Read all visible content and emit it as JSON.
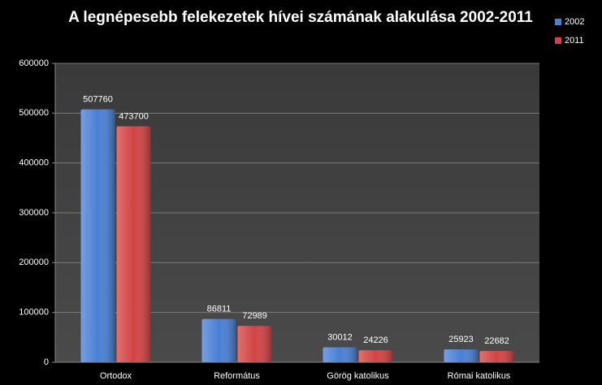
{
  "chart_data": {
    "type": "bar",
    "title": "A legnépesebb felekezetek hívei számának alakulása 2002-2011",
    "categories": [
      "Ortodox",
      "Református",
      "Görög katolikus",
      "Római katolikus"
    ],
    "series": [
      {
        "name": "2002",
        "color": "#4a7fd4",
        "values": [
          507760,
          86811,
          30012,
          25923
        ]
      },
      {
        "name": "2011",
        "color": "#d24343",
        "values": [
          473700,
          72989,
          24226,
          22682
        ]
      }
    ],
    "ylim": [
      0,
      600000
    ],
    "yticks": [
      0,
      100000,
      200000,
      300000,
      400000,
      500000,
      600000
    ],
    "grid": true,
    "legend": "top-right"
  }
}
